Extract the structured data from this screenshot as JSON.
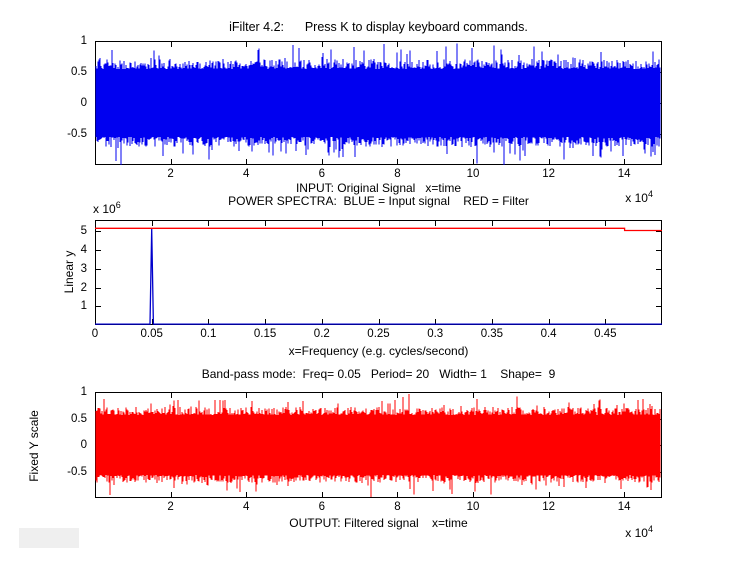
{
  "figure": {
    "title": "iFilter 4.2:      Press K to display keyboard commands.",
    "background": "#ffffff",
    "axis_color": "#000000",
    "signal_blue": "#0000f0",
    "signal_red": "#ff0000"
  },
  "chart_data": [
    {
      "id": "input",
      "type": "line",
      "xlabel": "INPUT: Original Signal   x=time",
      "x_multiplier": {
        "base": "x 10",
        "power": "4"
      },
      "x_unit": "1e4",
      "xlim": [
        0,
        15
      ],
      "ylim": [
        -1,
        1
      ],
      "xticks": {
        "values": [
          2,
          4,
          6,
          8,
          10,
          12,
          14
        ],
        "labels": [
          "2",
          "4",
          "6",
          "8",
          "10",
          "12",
          "14"
        ]
      },
      "yticks": {
        "values": [
          1,
          0.5,
          0,
          -0.5
        ],
        "labels": [
          "1",
          "0.5",
          "0",
          "-0.5"
        ]
      },
      "grid": false,
      "series": [
        {
          "name": "original-signal",
          "color": "#0000f0",
          "kind": "dense-random-noise",
          "amplitude_core": 0.55,
          "amplitude_ragged": 0.16,
          "spike_probability": 0.1,
          "spike_extra": 0.32,
          "peak_amplitude": 1.0
        }
      ]
    },
    {
      "id": "spectrum",
      "type": "line",
      "title": "POWER SPECTRA:  BLUE = Input signal    RED = Filter",
      "ylabel": "Linear y",
      "xlabel": "x=Frequency (e.g. cycles/second)",
      "y_multiplier": {
        "base": "x 10",
        "power": "6"
      },
      "y_unit": "1e6",
      "xlim": [
        0,
        0.5
      ],
      "ylim": [
        0,
        5.6
      ],
      "xticks": {
        "values": [
          0,
          0.05,
          0.1,
          0.15,
          0.2,
          0.25,
          0.3,
          0.35,
          0.4,
          0.45
        ],
        "labels": [
          "0",
          "0.05",
          "0.1",
          "0.15",
          "0.2",
          "0.25",
          "0.3",
          "0.35",
          "0.4",
          "0.45"
        ]
      },
      "yticks": {
        "values": [
          1,
          2,
          3,
          4,
          5
        ],
        "labels": [
          "1",
          "2",
          "3",
          "4",
          "5"
        ]
      },
      "grid": false,
      "legend": {
        "blue": "Input signal",
        "red": "Filter"
      },
      "series": [
        {
          "name": "input-spectrum",
          "color": "#0000cc",
          "kind": "polyline",
          "points": [
            [
              0,
              0.05
            ],
            [
              0.0485,
              0.05
            ],
            [
              0.05,
              5.12
            ],
            [
              0.0515,
              0.05
            ],
            [
              0.5,
              0.05
            ]
          ]
        },
        {
          "name": "filter-response",
          "color": "#ff0000",
          "kind": "polyline",
          "points": [
            [
              0,
              5.16
            ],
            [
              0.467,
              5.16
            ],
            [
              0.467,
              5.04
            ],
            [
              0.5,
              5.04
            ]
          ]
        }
      ]
    },
    {
      "id": "output",
      "type": "line",
      "title": "Band-pass mode:  Freq= 0.05   Period= 20   Width= 1    Shape=  9",
      "ylabel": "Fixed Y scale",
      "xlabel": "OUTPUT: Filtered signal    x=time",
      "x_multiplier": {
        "base": "x 10",
        "power": "4"
      },
      "x_unit": "1e4",
      "xlim": [
        0,
        15
      ],
      "ylim": [
        -1,
        1
      ],
      "xticks": {
        "values": [
          2,
          4,
          6,
          8,
          10,
          12,
          14
        ],
        "labels": [
          "2",
          "4",
          "6",
          "8",
          "10",
          "12",
          "14"
        ]
      },
      "yticks": {
        "values": [
          1,
          0.5,
          0,
          -0.5
        ],
        "labels": [
          "1",
          "0.5",
          "0",
          "-0.5"
        ]
      },
      "grid": false,
      "series": [
        {
          "name": "filtered-signal",
          "color": "#ff0000",
          "kind": "dense-random-noise",
          "amplitude_core": 0.57,
          "amplitude_ragged": 0.15,
          "spike_probability": 0.09,
          "spike_extra": 0.3,
          "peak_amplitude": 0.98
        }
      ]
    }
  ],
  "filter_settings": {
    "mode": "Band-pass",
    "freq": "0.05",
    "period": "20",
    "width": "1",
    "shape": "9"
  },
  "misc": {
    "bottom_left_box_color": "#efefef"
  }
}
